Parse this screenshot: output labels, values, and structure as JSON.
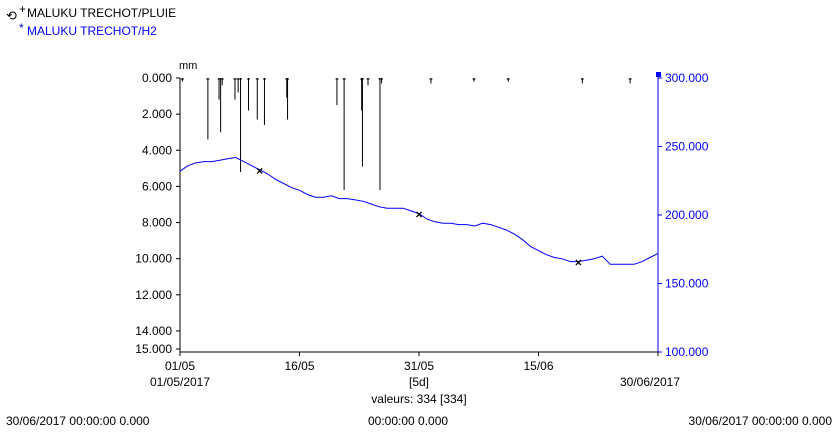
{
  "chart_data": {
    "type": "line",
    "legend": {
      "placement": "top-left",
      "items": [
        {
          "marker": "+",
          "label": "MALUKU TRECHOT/PLUIE",
          "color": "#000000"
        },
        {
          "marker": "*",
          "label": "MALUKU TRECHOT/H2",
          "color": "#0000ff"
        }
      ]
    },
    "left_axis": {
      "unit": "mm",
      "ticks": [
        "0.000",
        "2.000",
        "4.000",
        "6.000",
        "8.000",
        "10.000",
        "12.000",
        "14.000",
        "15.000"
      ],
      "range": [
        0,
        15
      ],
      "inverted": true,
      "color": "#000000"
    },
    "right_axis": {
      "ticks": [
        "100.000",
        "150.000",
        "200.000",
        "250.000",
        "300.000"
      ],
      "range": [
        100,
        300
      ],
      "color": "#0000ff"
    },
    "x_axis": {
      "range_days": [
        0,
        60
      ],
      "ticks": [
        {
          "day": 0,
          "label": "01/05"
        },
        {
          "day": 15,
          "label": "16/05"
        },
        {
          "day": 30,
          "label": "31/05"
        },
        {
          "day": 45,
          "label": "15/06"
        }
      ],
      "start_label": "01/05/2017",
      "end_label": "30/06/2017",
      "interval_label": "[5d]",
      "count_label": "valeurs: 334 [334]"
    },
    "series": [
      {
        "name": "MALUKU TRECHOT/PLUIE",
        "kind": "bars",
        "color": "#000000",
        "axis": "left",
        "points": [
          {
            "day": 0.3,
            "v": 0.2
          },
          {
            "day": 3.5,
            "v": 3.4
          },
          {
            "day": 4.9,
            "v": 1.2
          },
          {
            "day": 5.1,
            "v": 3.0
          },
          {
            "day": 5.3,
            "v": 0.4
          },
          {
            "day": 6.9,
            "v": 1.2
          },
          {
            "day": 7.3,
            "v": 0.8
          },
          {
            "day": 7.6,
            "v": 5.2
          },
          {
            "day": 8.6,
            "v": 1.8
          },
          {
            "day": 9.7,
            "v": 2.3
          },
          {
            "day": 10.6,
            "v": 2.6
          },
          {
            "day": 13.4,
            "v": 1.1
          },
          {
            "day": 13.5,
            "v": 2.3
          },
          {
            "day": 19.7,
            "v": 1.5
          },
          {
            "day": 20.6,
            "v": 6.2
          },
          {
            "day": 22.8,
            "v": 1.8
          },
          {
            "day": 22.9,
            "v": 4.9
          },
          {
            "day": 23.6,
            "v": 0.4
          },
          {
            "day": 25.1,
            "v": 6.2
          },
          {
            "day": 25.3,
            "v": 0.3
          },
          {
            "day": 31.5,
            "v": 0.3
          },
          {
            "day": 36.9,
            "v": 0.2
          },
          {
            "day": 41.2,
            "v": 0.2
          },
          {
            "day": 50.5,
            "v": 0.3
          },
          {
            "day": 56.5,
            "v": 0.3
          }
        ]
      },
      {
        "name": "MALUKU TRECHOT/H2",
        "kind": "line",
        "color": "#0000ff",
        "axis": "right",
        "points": [
          [
            0,
            232
          ],
          [
            1,
            236
          ],
          [
            2,
            238
          ],
          [
            3,
            239
          ],
          [
            4,
            239
          ],
          [
            5,
            240
          ],
          [
            6,
            241
          ],
          [
            7,
            242
          ],
          [
            8,
            239
          ],
          [
            9,
            236
          ],
          [
            10,
            233
          ],
          [
            11,
            230
          ],
          [
            12,
            226
          ],
          [
            13,
            223
          ],
          [
            14,
            220
          ],
          [
            15,
            218
          ],
          [
            16,
            215
          ],
          [
            17,
            213
          ],
          [
            18,
            213
          ],
          [
            19,
            214
          ],
          [
            20,
            212
          ],
          [
            21,
            212
          ],
          [
            22,
            211
          ],
          [
            23,
            210
          ],
          [
            24,
            208
          ],
          [
            25,
            206
          ],
          [
            26,
            205
          ],
          [
            27,
            205
          ],
          [
            28,
            205
          ],
          [
            29,
            203
          ],
          [
            30,
            201
          ],
          [
            31,
            197
          ],
          [
            32,
            195
          ],
          [
            33,
            194
          ],
          [
            34,
            194
          ],
          [
            35,
            193
          ],
          [
            36,
            193
          ],
          [
            37,
            192
          ],
          [
            38,
            194
          ],
          [
            39,
            193
          ],
          [
            40,
            191
          ],
          [
            41,
            189
          ],
          [
            42,
            186
          ],
          [
            43,
            182
          ],
          [
            44,
            177
          ],
          [
            45,
            174
          ],
          [
            46,
            171
          ],
          [
            47,
            169
          ],
          [
            48,
            168
          ],
          [
            49,
            166
          ],
          [
            50,
            166
          ],
          [
            51,
            167
          ],
          [
            52,
            168
          ],
          [
            53,
            170
          ],
          [
            54,
            164
          ],
          [
            55,
            164
          ],
          [
            56,
            164
          ],
          [
            57,
            164
          ],
          [
            58,
            166
          ],
          [
            59,
            169
          ],
          [
            60,
            172
          ]
        ],
        "markers": [
          [
            10,
            233
          ],
          [
            30,
            201
          ],
          [
            50,
            166
          ]
        ]
      }
    ]
  },
  "footer": {
    "left": "30/06/2017 00:00:00  0.000",
    "center": "00:00:00  0.000",
    "right": "30/06/2017 00:00:00  0.000"
  }
}
